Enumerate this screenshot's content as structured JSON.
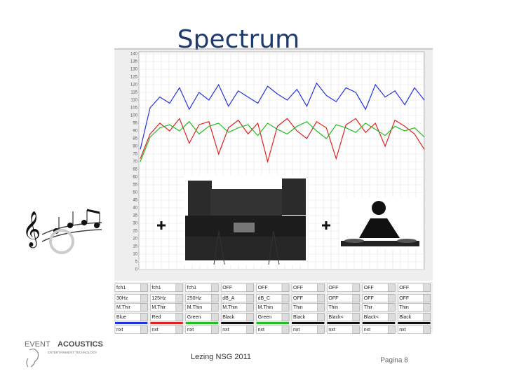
{
  "header": {
    "title": "Spectrum"
  },
  "chart_data": {
    "type": "line",
    "ylim": [
      0,
      140
    ],
    "yticks": [
      0,
      5,
      10,
      15,
      20,
      25,
      30,
      35,
      40,
      45,
      50,
      55,
      60,
      65,
      70,
      75,
      80,
      85,
      90,
      95,
      100,
      105,
      110,
      115,
      120,
      125,
      130,
      135,
      140
    ],
    "grid": true,
    "series": [
      {
        "color": "#2233dd",
        "values": [
          78,
          105,
          112,
          108,
          118,
          104,
          115,
          110,
          120,
          106,
          116,
          112,
          108,
          119,
          114,
          110,
          117,
          106,
          121,
          113,
          109,
          118,
          115,
          104,
          120,
          112,
          116,
          107,
          118,
          110
        ]
      },
      {
        "color": "#dd2222",
        "values": [
          72,
          88,
          95,
          90,
          98,
          82,
          94,
          96,
          75,
          92,
          97,
          88,
          95,
          70,
          93,
          98,
          90,
          85,
          96,
          92,
          72,
          94,
          98,
          89,
          95,
          80,
          97,
          93,
          88,
          78
        ]
      },
      {
        "color": "#22bb22",
        "values": [
          70,
          86,
          92,
          94,
          90,
          96,
          88,
          93,
          95,
          89,
          92,
          94,
          87,
          95,
          91,
          88,
          93,
          96,
          90,
          85,
          94,
          92,
          89,
          95,
          91,
          87,
          93,
          90,
          92,
          86
        ]
      }
    ]
  },
  "panel": {
    "rows": [
      [
        "fch1",
        "fch1",
        "fch1",
        "OFF",
        "OFF",
        "OFF",
        "OFF",
        "OFF",
        "OFF"
      ],
      [
        "30Hz",
        "125Hz",
        "250Hz",
        "dB_A",
        "dB_C",
        "OFF",
        "OFF",
        "OFF",
        "OFF"
      ],
      [
        "M.Thir",
        "M.Thir",
        "M.Thin",
        "M.Thin",
        "M.Thin",
        "Thin",
        "Thin",
        "Thir",
        "Thin"
      ],
      [
        "Blue",
        "Red",
        "Green",
        "Black",
        "Green",
        "Black",
        "Black<",
        "Black<",
        "Black"
      ],
      [
        "nxt",
        "nxt",
        "nxt",
        "nxt",
        "nxt",
        "nxt",
        "nxt",
        "nxt",
        "nxt"
      ]
    ]
  },
  "logo": {
    "name_a": "EVENT",
    "name_b": "ACOUSTICS",
    "tagline": "ENTERTAINMENT TECHNOLOGY"
  },
  "footer": {
    "lecture": "Lezing  NSG 2011",
    "page": "Pagina 8"
  }
}
